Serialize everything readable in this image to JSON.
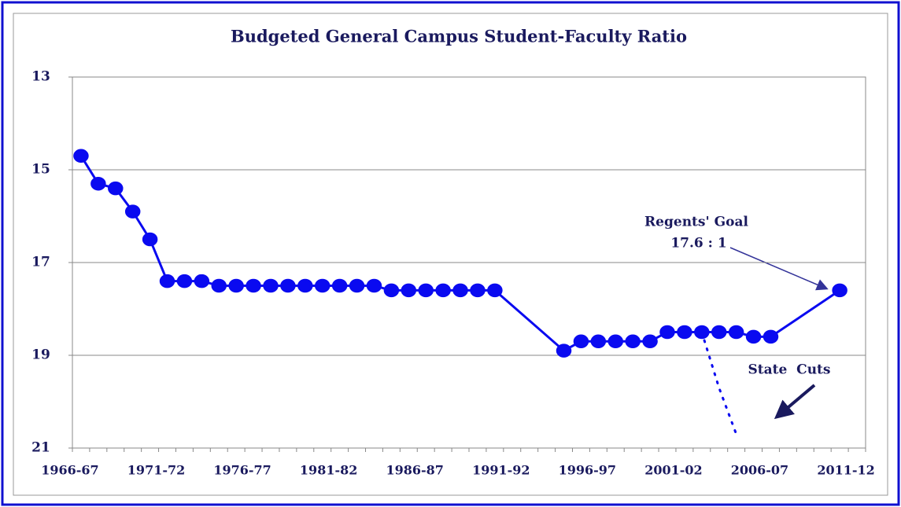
{
  "chart_data": {
    "type": "line",
    "title": "Budgeted General Campus Student-Faculty Ratio",
    "categories": [
      "1966-67",
      null,
      null,
      null,
      null,
      "1971-72",
      null,
      null,
      null,
      null,
      "1976-77",
      null,
      null,
      null,
      null,
      "1981-82",
      null,
      null,
      null,
      null,
      "1986-87",
      null,
      null,
      null,
      null,
      "1991-92",
      null,
      null,
      null,
      null,
      "1996-97",
      null,
      null,
      null,
      null,
      "2001-02",
      null,
      null,
      null,
      null,
      "2006-07",
      null,
      null,
      null,
      null,
      "2011-12"
    ],
    "series": [
      {
        "color": "#0a0af0",
        "marker_color": "#0a0af0",
        "dashed": false,
        "values": [
          14.7,
          15.3,
          15.4,
          15.9,
          16.5,
          17.4,
          17.4,
          17.4,
          17.5,
          17.5,
          17.5,
          17.5,
          17.5,
          17.5,
          17.5,
          17.5,
          17.5,
          17.5,
          17.6,
          17.6,
          17.6,
          17.6,
          17.6,
          17.6,
          17.6,
          null,
          null,
          null,
          18.9,
          18.7,
          18.7,
          18.7,
          18.7,
          18.7,
          18.5,
          18.5,
          18.5,
          18.5,
          18.5,
          18.6,
          18.6,
          null,
          null,
          null,
          17.6,
          null
        ]
      },
      {
        "color": "#0a0af0",
        "marker_color": "#33ccff",
        "dashed": true,
        "values": [
          null,
          null,
          null,
          null,
          null,
          null,
          null,
          null,
          null,
          null,
          null,
          null,
          null,
          null,
          null,
          null,
          null,
          null,
          null,
          null,
          null,
          null,
          null,
          null,
          null,
          null,
          null,
          null,
          null,
          null,
          null,
          null,
          null,
          null,
          null,
          null,
          18.5,
          19.7,
          20.7,
          null,
          null,
          null,
          null,
          null,
          null,
          null
        ]
      }
    ],
    "ylim": [
      13,
      21
    ],
    "y_inverted": true,
    "yticks": [
      13,
      15,
      17,
      19,
      21
    ],
    "grid": true,
    "annotations": [
      "Regents' Goal",
      "17.6 : 1",
      "State  Cuts"
    ]
  }
}
